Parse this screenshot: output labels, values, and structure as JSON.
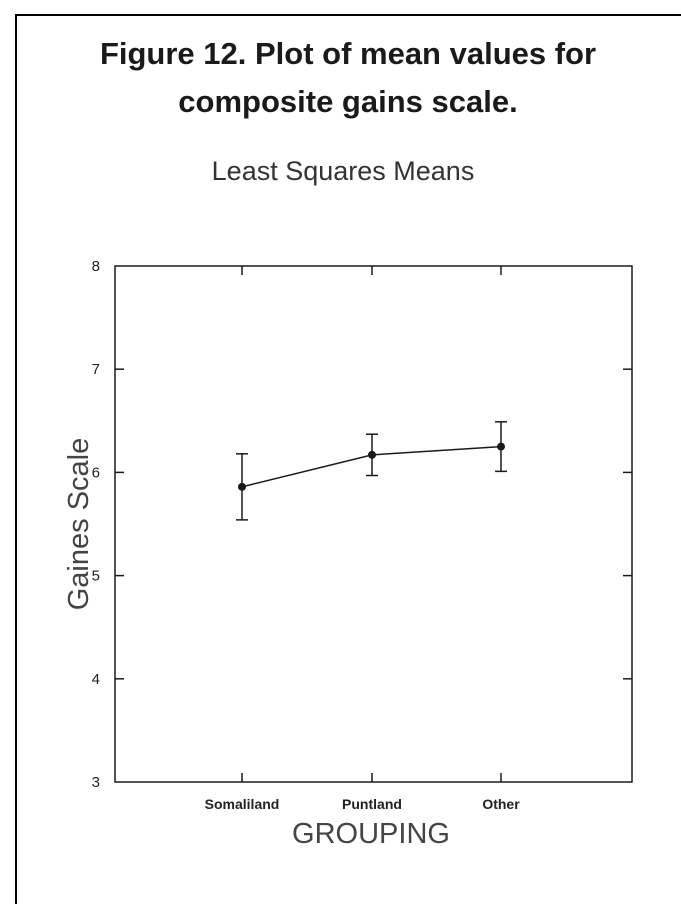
{
  "figure": {
    "caption_line1": "Figure 12.  Plot of mean values for",
    "caption_line2": "composite gains scale."
  },
  "chart_data": {
    "type": "line",
    "title": "Least Squares Means",
    "xlabel": "GROUPING",
    "ylabel": "Gaines Scale",
    "categories": [
      "Somaliland",
      "Puntland",
      "Other"
    ],
    "series": [
      {
        "values": [
          5.86,
          6.17,
          6.25
        ],
        "error_low": [
          5.54,
          5.97,
          6.01
        ],
        "error_high": [
          6.18,
          6.37,
          6.49
        ]
      }
    ],
    "ylim": [
      3,
      8
    ],
    "yticks": [
      3,
      4,
      5,
      6,
      7,
      8
    ],
    "grid": false,
    "colors": {
      "line": "#1a1a1a",
      "text": "#444444"
    }
  }
}
